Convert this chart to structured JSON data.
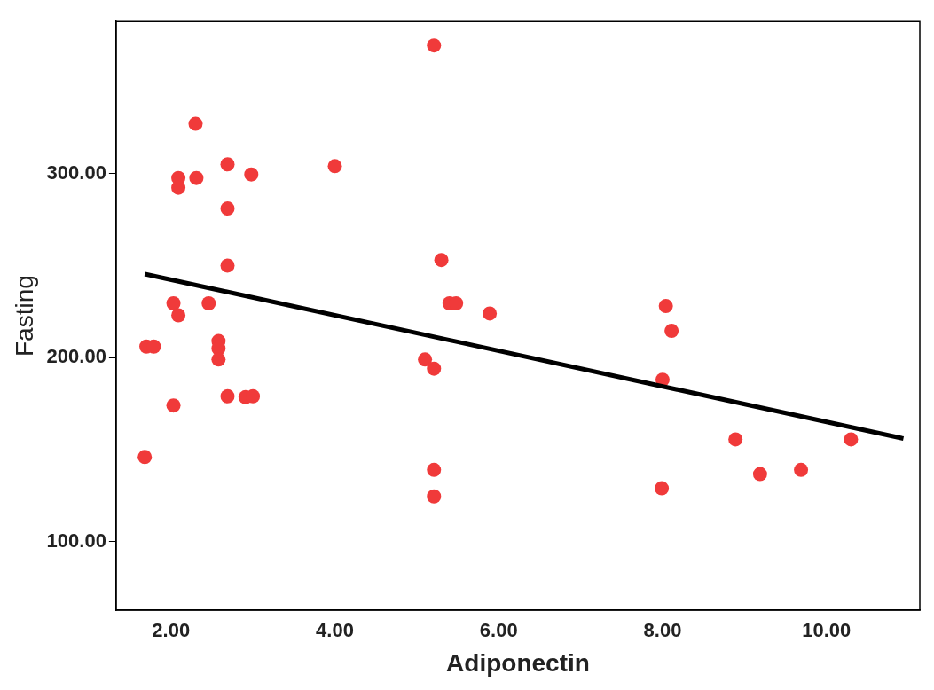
{
  "chart_data": {
    "type": "scatter",
    "xlabel": "Adiponectin",
    "ylabel": "Fasting",
    "xlim": [
      1.33,
      11.14
    ],
    "ylim": [
      62.8,
      382.6
    ],
    "xticks": [
      {
        "value": 2,
        "label": "2.00"
      },
      {
        "value": 4,
        "label": "4.00"
      },
      {
        "value": 6,
        "label": "6.00"
      },
      {
        "value": 8,
        "label": "8.00"
      },
      {
        "value": 10,
        "label": "10.00"
      }
    ],
    "yticks": [
      {
        "value": 100,
        "label": "100.00"
      },
      {
        "value": 200,
        "label": "200.00"
      },
      {
        "value": 300,
        "label": "300.00"
      }
    ],
    "grid": false,
    "legend": false,
    "series": [
      {
        "color": "#f03a3a",
        "marker": "circle",
        "x": [
          5.21,
          2.3,
          2.09,
          2.09,
          2.31,
          2.69,
          2.98,
          4.0,
          2.69,
          2.69,
          5.3,
          2.03,
          2.09,
          2.46,
          1.7,
          1.79,
          2.58,
          2.58,
          2.58,
          2.03,
          2.69,
          2.91,
          3.0,
          1.68,
          5.1,
          5.21,
          5.4,
          5.48,
          5.89,
          8.04,
          8.11,
          8.0,
          5.21,
          5.21,
          7.99,
          8.89,
          9.19,
          9.69,
          10.3
        ],
        "values": [
          369.6,
          327,
          297.6,
          292.3,
          297.6,
          305,
          299.5,
          304,
          281,
          250,
          253,
          229.5,
          223,
          229.5,
          206,
          206,
          209,
          205,
          199,
          174,
          179,
          178.5,
          179,
          146,
          199,
          194,
          229.5,
          229.5,
          224,
          228,
          214.5,
          188,
          139,
          124.6,
          129,
          155.6,
          136.7,
          139,
          155.6
        ]
      },
      {
        "type": "line",
        "color": "#000000",
        "line_style": "solid",
        "marker": "none",
        "x": [
          1.68,
          10.94
        ],
        "values": [
          245.4,
          156
        ]
      }
    ]
  }
}
